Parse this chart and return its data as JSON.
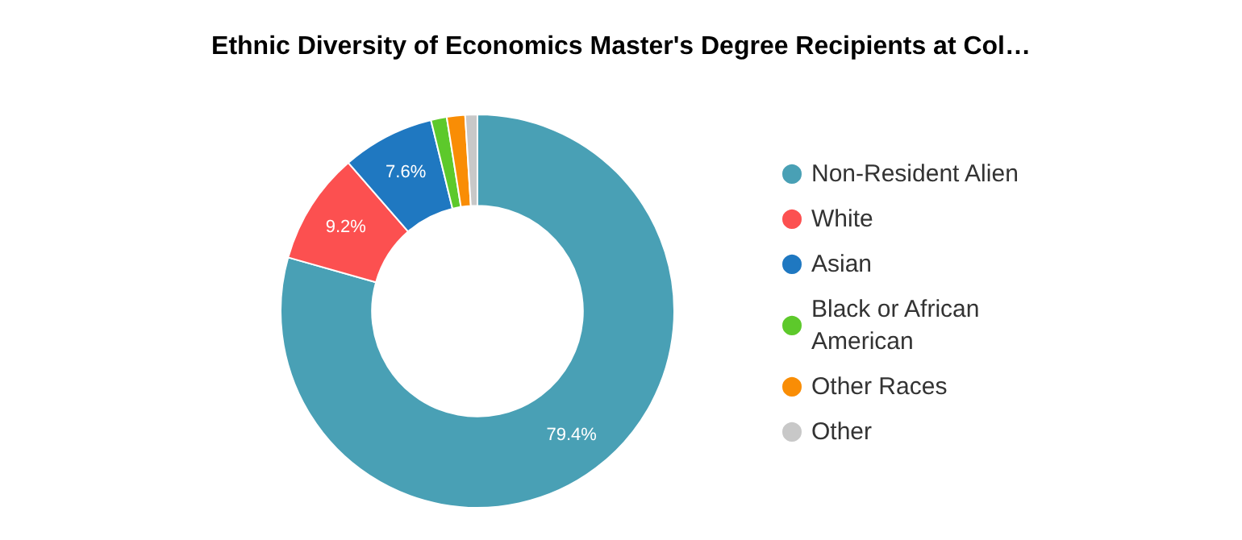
{
  "chart_data": {
    "type": "donut",
    "title": "Ethnic Diversity of Economics Master's Degree Recipients at Col…",
    "categories": [
      "Non-Resident Alien",
      "White",
      "Asian",
      "Black or African American",
      "Other Races",
      "Other"
    ],
    "values": [
      79.4,
      9.2,
      7.6,
      1.3,
      1.5,
      1.0
    ],
    "colors": [
      "#49a0b5",
      "#fc5050",
      "#1f78c1",
      "#5dc92b",
      "#f98d05",
      "#c8c8c8"
    ],
    "value_labels": [
      "79.4%",
      "9.2%",
      "7.6%",
      null,
      null,
      null
    ],
    "legend": "right"
  }
}
